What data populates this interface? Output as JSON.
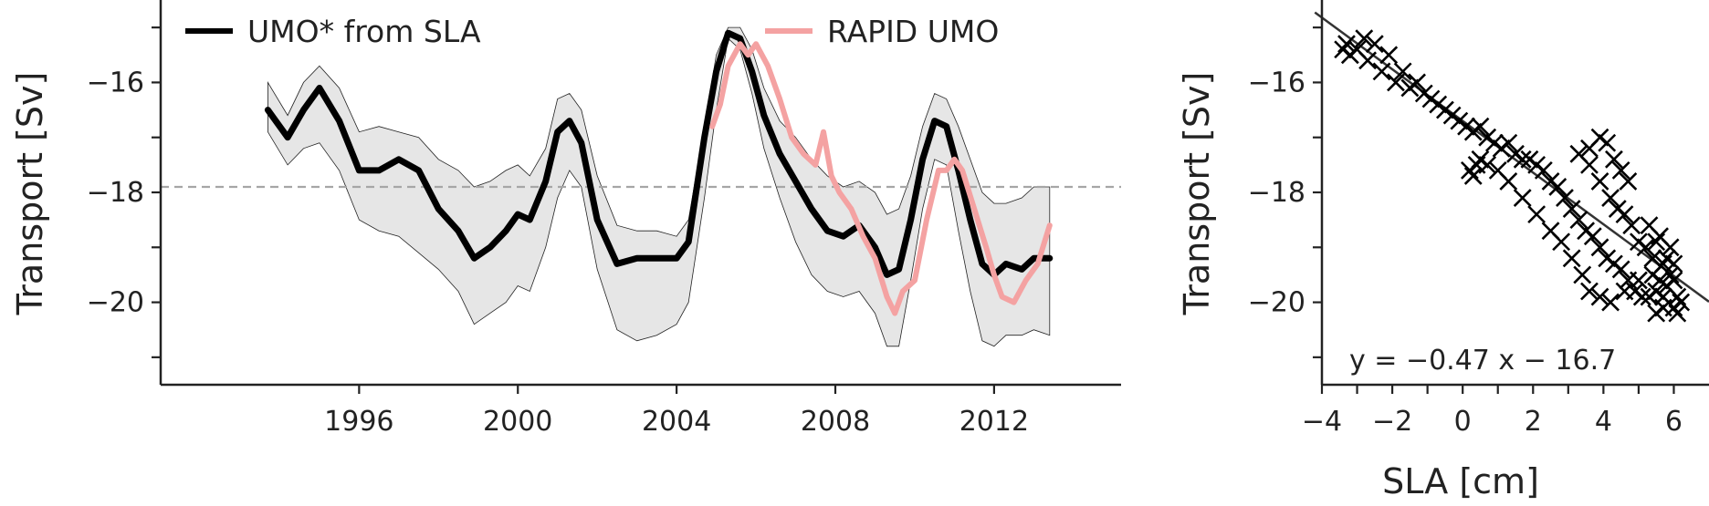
{
  "chart_data": [
    {
      "type": "line",
      "title": "",
      "xlabel": "",
      "ylabel": "Transport [Sv]",
      "xlim": [
        1991.0,
        2015.2
      ],
      "ylim": [
        -21.5,
        -14.5
      ],
      "xticks": [
        1996,
        2000,
        2004,
        2008,
        2012
      ],
      "xtick_labels": [
        "1996",
        "2000",
        "2004",
        "2008",
        "2012"
      ],
      "yticks": [
        -21,
        -20,
        -19,
        -18,
        -17,
        -16,
        -15
      ],
      "ytick_labels": [
        {
          "value": -20,
          "label": "−20"
        },
        {
          "value": -18,
          "label": "−18"
        },
        {
          "value": -16,
          "label": "−16"
        }
      ],
      "reference_line": {
        "y": -17.9,
        "style": "dashed",
        "color": "#a6a6a6"
      },
      "legend": {
        "placement": "top"
      },
      "series": [
        {
          "name": "UMO* from SLA",
          "color": "#000000",
          "x": [
            1993.7,
            1994.2,
            1994.6,
            1995.0,
            1995.5,
            1996.0,
            1996.5,
            1997.0,
            1997.5,
            1998.0,
            1998.5,
            1998.9,
            1999.3,
            1999.7,
            2000.0,
            2000.3,
            2000.7,
            2001.0,
            2001.3,
            2001.6,
            2002.0,
            2002.5,
            2003.0,
            2003.5,
            2004.0,
            2004.3,
            2004.7,
            2005.0,
            2005.3,
            2005.6,
            2005.9,
            2006.2,
            2006.6,
            2007.0,
            2007.4,
            2007.8,
            2008.2,
            2008.6,
            2009.0,
            2009.3,
            2009.6,
            2009.9,
            2010.2,
            2010.5,
            2010.8,
            2011.1,
            2011.4,
            2011.7,
            2012.0,
            2012.3,
            2012.7,
            2013.0,
            2013.4
          ],
          "y": [
            -16.5,
            -17.0,
            -16.5,
            -16.1,
            -16.7,
            -17.6,
            -17.6,
            -17.4,
            -17.6,
            -18.3,
            -18.7,
            -19.2,
            -19.0,
            -18.7,
            -18.4,
            -18.5,
            -17.8,
            -16.9,
            -16.7,
            -17.1,
            -18.5,
            -19.3,
            -19.2,
            -19.2,
            -19.2,
            -18.9,
            -17.0,
            -15.8,
            -15.1,
            -15.2,
            -15.8,
            -16.6,
            -17.3,
            -17.8,
            -18.3,
            -18.7,
            -18.8,
            -18.6,
            -19.0,
            -19.5,
            -19.4,
            -18.5,
            -17.4,
            -16.7,
            -16.8,
            -17.6,
            -18.5,
            -19.3,
            -19.5,
            -19.3,
            -19.4,
            -19.2,
            -19.2
          ]
        },
        {
          "name": "uncertainty band",
          "color": "#e6e6e6",
          "x": [
            1993.7,
            1994.2,
            1994.6,
            1995.0,
            1995.5,
            1996.0,
            1996.5,
            1997.0,
            1997.5,
            1998.0,
            1998.5,
            1998.9,
            1999.3,
            1999.7,
            2000.0,
            2000.3,
            2000.7,
            2001.0,
            2001.3,
            2001.6,
            2002.0,
            2002.5,
            2003.0,
            2003.5,
            2004.0,
            2004.3,
            2004.7,
            2005.0,
            2005.3,
            2005.6,
            2005.9,
            2006.2,
            2006.6,
            2007.0,
            2007.4,
            2007.8,
            2008.2,
            2008.6,
            2009.0,
            2009.3,
            2009.6,
            2009.9,
            2010.2,
            2010.5,
            2010.8,
            2011.1,
            2011.4,
            2011.7,
            2012.0,
            2012.3,
            2012.7,
            2013.0,
            2013.4
          ],
          "upper": [
            -16.0,
            -16.6,
            -16.0,
            -15.7,
            -16.1,
            -16.9,
            -16.8,
            -16.9,
            -17.0,
            -17.4,
            -17.6,
            -17.9,
            -17.8,
            -17.6,
            -17.5,
            -17.7,
            -17.2,
            -16.3,
            -16.2,
            -16.5,
            -17.7,
            -18.6,
            -18.7,
            -18.7,
            -18.8,
            -18.5,
            -16.8,
            -15.5,
            -15.0,
            -15.0,
            -15.4,
            -16.1,
            -16.7,
            -17.0,
            -17.4,
            -17.7,
            -17.9,
            -17.8,
            -18.0,
            -18.4,
            -18.3,
            -17.7,
            -16.8,
            -16.2,
            -16.3,
            -16.8,
            -17.4,
            -18.0,
            -18.2,
            -18.2,
            -18.1,
            -17.9,
            -17.9
          ],
          "lower": [
            -16.9,
            -17.5,
            -17.2,
            -17.1,
            -17.6,
            -18.5,
            -18.7,
            -18.8,
            -19.1,
            -19.4,
            -19.8,
            -20.4,
            -20.2,
            -20.0,
            -19.7,
            -19.8,
            -19.0,
            -18.1,
            -17.6,
            -17.9,
            -19.4,
            -20.5,
            -20.7,
            -20.6,
            -20.4,
            -20.0,
            -18.1,
            -16.5,
            -15.2,
            -15.4,
            -16.2,
            -17.2,
            -18.1,
            -18.9,
            -19.5,
            -19.8,
            -19.9,
            -19.8,
            -20.2,
            -20.8,
            -20.8,
            -19.6,
            -18.3,
            -17.4,
            -17.5,
            -18.7,
            -19.8,
            -20.7,
            -20.8,
            -20.6,
            -20.6,
            -20.5,
            -20.6
          ]
        },
        {
          "name": "RAPID UMO",
          "color": "#f4a2a2",
          "x": [
            2004.9,
            2005.1,
            2005.3,
            2005.6,
            2005.8,
            2006.0,
            2006.3,
            2006.6,
            2006.9,
            2007.2,
            2007.5,
            2007.7,
            2007.9,
            2008.1,
            2008.4,
            2008.7,
            2009.0,
            2009.3,
            2009.5,
            2009.7,
            2010.0,
            2010.3,
            2010.6,
            2010.8,
            2011.0,
            2011.2,
            2011.5,
            2011.8,
            2012.0,
            2012.2,
            2012.5,
            2012.8,
            2013.1,
            2013.4
          ],
          "y": [
            -16.8,
            -16.4,
            -15.7,
            -15.3,
            -15.5,
            -15.3,
            -15.7,
            -16.3,
            -17.0,
            -17.3,
            -17.5,
            -16.9,
            -17.7,
            -18.0,
            -18.3,
            -18.8,
            -19.2,
            -19.9,
            -20.2,
            -19.8,
            -19.6,
            -18.5,
            -17.6,
            -17.6,
            -17.4,
            -17.6,
            -18.3,
            -19.0,
            -19.5,
            -19.9,
            -20.0,
            -19.6,
            -19.3,
            -18.6
          ]
        }
      ]
    },
    {
      "type": "scatter",
      "title": "",
      "xlabel": "SLA [cm]",
      "ylabel": "Transport [Sv]",
      "xlim": [
        -4,
        7
      ],
      "ylim": [
        -21.5,
        -14.5
      ],
      "xticks": [
        -4,
        -3,
        -2,
        -1,
        0,
        1,
        2,
        3,
        4,
        5,
        6
      ],
      "xtick_labels": [
        {
          "value": -4,
          "label": "−4"
        },
        {
          "value": -2,
          "label": "−2"
        },
        {
          "value": 0,
          "label": "0"
        },
        {
          "value": 2,
          "label": "2"
        },
        {
          "value": 4,
          "label": "4"
        },
        {
          "value": 6,
          "label": "6"
        }
      ],
      "yticks": [
        -21,
        -20,
        -19,
        -18,
        -17,
        -16,
        -15
      ],
      "ytick_labels": [
        {
          "value": -20,
          "label": "−20"
        },
        {
          "value": -18,
          "label": "−18"
        },
        {
          "value": -16,
          "label": "−16"
        }
      ],
      "marker": "x",
      "marker_color": "#000000",
      "fit_line": {
        "slope": -0.47,
        "intercept": -16.7,
        "color": "#333333"
      },
      "annotation": "y = −0.47 x − 16.7",
      "points": [
        [
          -3.4,
          -15.4
        ],
        [
          -3.3,
          -15.3
        ],
        [
          -3.2,
          -15.5
        ],
        [
          -3.0,
          -15.4
        ],
        [
          -2.8,
          -15.2
        ],
        [
          -2.7,
          -15.6
        ],
        [
          -2.5,
          -15.3
        ],
        [
          -2.3,
          -15.8
        ],
        [
          -2.1,
          -15.5
        ],
        [
          -1.9,
          -16.0
        ],
        [
          -1.7,
          -15.8
        ],
        [
          -1.5,
          -16.1
        ],
        [
          -1.3,
          -16.0
        ],
        [
          -1.1,
          -16.2
        ],
        [
          -0.9,
          -16.3
        ],
        [
          -0.7,
          -16.4
        ],
        [
          -0.5,
          -16.5
        ],
        [
          -0.3,
          -16.6
        ],
        [
          -0.1,
          -16.7
        ],
        [
          0.1,
          -16.8
        ],
        [
          0.3,
          -16.9
        ],
        [
          0.5,
          -16.8
        ],
        [
          0.7,
          -17.0
        ],
        [
          0.9,
          -17.1
        ],
        [
          1.1,
          -17.2
        ],
        [
          1.3,
          -17.1
        ],
        [
          1.5,
          -17.3
        ],
        [
          1.7,
          -17.4
        ],
        [
          1.9,
          -17.4
        ],
        [
          2.1,
          -17.5
        ],
        [
          2.3,
          -17.6
        ],
        [
          2.5,
          -17.8
        ],
        [
          2.7,
          -17.9
        ],
        [
          2.9,
          -18.1
        ],
        [
          3.1,
          -18.3
        ],
        [
          3.3,
          -18.5
        ],
        [
          3.5,
          -18.7
        ],
        [
          3.7,
          -18.8
        ],
        [
          3.9,
          -19.0
        ],
        [
          4.1,
          -19.2
        ],
        [
          4.3,
          -19.3
        ],
        [
          4.5,
          -19.4
        ],
        [
          4.7,
          -19.6
        ],
        [
          4.9,
          -19.8
        ],
        [
          5.1,
          -19.9
        ],
        [
          5.3,
          -19.9
        ],
        [
          5.5,
          -19.8
        ],
        [
          5.6,
          -19.6
        ],
        [
          5.8,
          -19.7
        ],
        [
          6.0,
          -20.1
        ],
        [
          6.1,
          -19.9
        ],
        [
          6.2,
          -20.0
        ],
        [
          5.9,
          -19.5
        ],
        [
          5.7,
          -19.3
        ],
        [
          5.4,
          -19.2
        ],
        [
          5.2,
          -19.0
        ],
        [
          5.0,
          -18.9
        ],
        [
          4.8,
          -18.6
        ],
        [
          4.6,
          -18.4
        ],
        [
          4.4,
          -18.3
        ],
        [
          4.2,
          -18.1
        ],
        [
          3.9,
          -17.8
        ],
        [
          3.6,
          -17.5
        ],
        [
          3.3,
          -17.3
        ],
        [
          3.6,
          -17.2
        ],
        [
          3.9,
          -17.0
        ],
        [
          4.1,
          -17.1
        ],
        [
          4.3,
          -17.4
        ],
        [
          4.5,
          -17.6
        ],
        [
          4.7,
          -17.8
        ],
        [
          0.2,
          -17.6
        ],
        [
          0.4,
          -17.5
        ],
        [
          0.3,
          -17.7
        ],
        [
          0.5,
          -17.4
        ],
        [
          0.7,
          -17.5
        ],
        [
          1.0,
          -17.6
        ],
        [
          1.3,
          -17.8
        ],
        [
          1.7,
          -18.1
        ],
        [
          2.1,
          -18.4
        ],
        [
          2.5,
          -18.7
        ],
        [
          2.8,
          -18.9
        ],
        [
          3.1,
          -19.2
        ],
        [
          3.4,
          -19.5
        ],
        [
          3.6,
          -19.8
        ],
        [
          3.9,
          -19.9
        ],
        [
          4.2,
          -20.0
        ],
        [
          4.6,
          -19.8
        ],
        [
          5.0,
          -19.6
        ],
        [
          5.4,
          -19.5
        ],
        [
          5.7,
          -19.9
        ],
        [
          6.0,
          -19.6
        ],
        [
          5.8,
          -19.2
        ],
        [
          6.1,
          -20.2
        ],
        [
          5.5,
          -18.9
        ],
        [
          5.3,
          -18.6
        ],
        [
          5.6,
          -18.8
        ],
        [
          5.9,
          -19.0
        ],
        [
          6.0,
          -19.3
        ],
        [
          5.7,
          -20.1
        ],
        [
          5.5,
          -20.2
        ]
      ]
    }
  ]
}
